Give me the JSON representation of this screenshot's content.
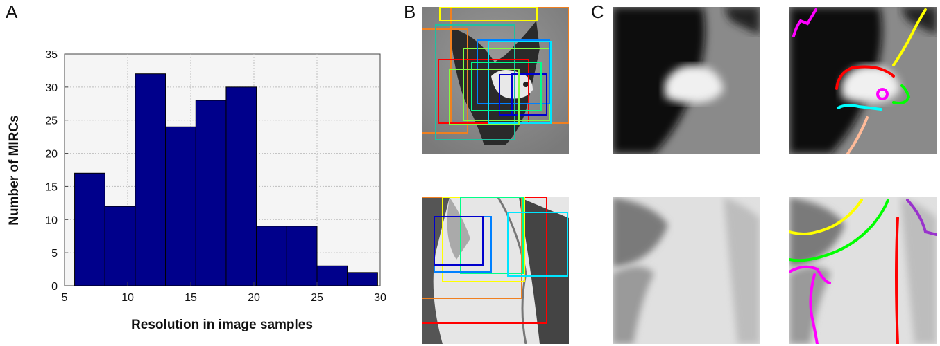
{
  "panels": {
    "a": "A",
    "b": "B",
    "c": "C"
  },
  "chart_data": {
    "type": "bar",
    "title": "",
    "xlabel": "Resolution in image samples",
    "ylabel": "Number of MIRCs",
    "xlim": [
      5,
      30
    ],
    "ylim": [
      0,
      35
    ],
    "x_ticks": [
      5,
      10,
      15,
      20,
      25,
      30
    ],
    "y_ticks": [
      0,
      5,
      10,
      15,
      20,
      25,
      30,
      35
    ],
    "grid": true,
    "bin_edges": [
      5.8,
      8.2,
      10.6,
      13.0,
      15.4,
      17.8,
      20.2,
      22.6,
      25.0,
      27.4,
      29.8
    ],
    "values": [
      17,
      12,
      32,
      24,
      28,
      30,
      9,
      9,
      3,
      2
    ],
    "bar_color": "#00008b"
  },
  "colors": {
    "box_palette": [
      "#f08020",
      "#ff0000",
      "#ffff00",
      "#00ff88",
      "#00e5ff",
      "#0080ff",
      "#0000cc",
      "#80ff40",
      "#20c0a0"
    ],
    "contours": [
      "#ff00ff",
      "#ffff00",
      "#ff0000",
      "#00ffff",
      "#00ff00",
      "#ffbb99",
      "#9933cc"
    ]
  }
}
